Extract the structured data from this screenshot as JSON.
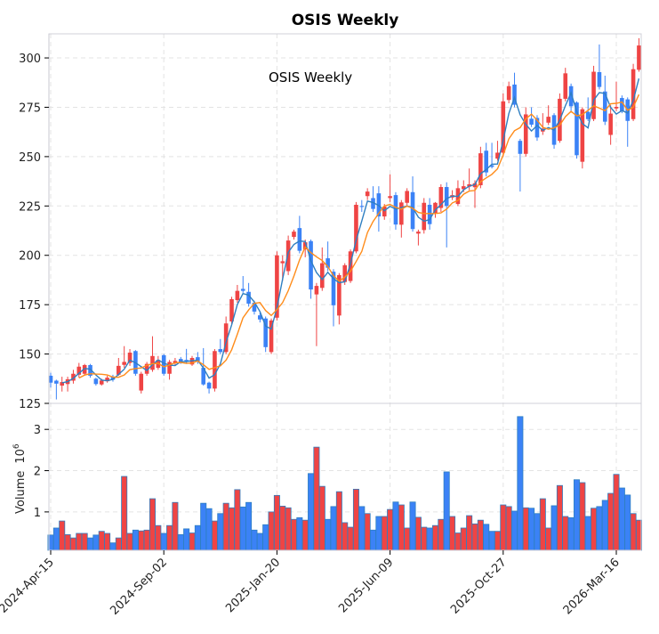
{
  "chart_data": {
    "type": "candlestick",
    "title": "OSIS  Weekly",
    "annotation": "OSIS  Weekly",
    "ylabel_volume": "Volume",
    "ylabel_volume_exponent": "10",
    "ylabel_volume_power": "6",
    "price_ylim": [
      125,
      312.2
    ],
    "price_yticks": [
      125,
      150,
      175,
      200,
      225,
      250,
      275,
      300
    ],
    "volume_ylim": [
      0.07,
      3.63
    ],
    "volume_yticks": [
      1,
      2,
      3
    ],
    "grid": true,
    "xtick_labels": [
      {
        "index": 0,
        "label": "2024-Apr-15"
      },
      {
        "index": 20,
        "label": "2024-Sep-02"
      },
      {
        "index": 40,
        "label": "2025-Jan-20"
      },
      {
        "index": 60,
        "label": "2025-Jun-09"
      },
      {
        "index": 80,
        "label": "2025-Oct-27"
      },
      {
        "index": 100,
        "label": "2026-Mar-16"
      }
    ],
    "moving_averages": [
      {
        "window": 3,
        "color": "#2f7fc1"
      },
      {
        "window": 6,
        "color": "#ff8c1a"
      }
    ],
    "colors": {
      "up": "#ef4444",
      "down": "#3b82f6",
      "volume_edge": "#2f7fc1"
    },
    "open": [
      139,
      136.5,
      134,
      134.8,
      136.5,
      139.5,
      140,
      144.4,
      137.5,
      134.6,
      136.2,
      138.5,
      139.5,
      144.5,
      145.5,
      151.5,
      131.5,
      140,
      142,
      143,
      149.4,
      140,
      145.5,
      147.5,
      147,
      144.7,
      148.4,
      143,
      135.5,
      132.5,
      152.5,
      151,
      166.5,
      177.3,
      183,
      181.5,
      176,
      169.6,
      168,
      151,
      168.4,
      196,
      192,
      209.3,
      213.8,
      203,
      207.2,
      180.2,
      183.5,
      198.5,
      191.7,
      169.5,
      186.5,
      187,
      202,
      225,
      230,
      229,
      231.4,
      219.7,
      229,
      230.5,
      215.5,
      226.6,
      232,
      211,
      212.8,
      225.6,
      221.5,
      224,
      234.6,
      229.3,
      226,
      233.5,
      234.8,
      234.5,
      235.5,
      253,
      245.6,
      249,
      252,
      278.7,
      286.5,
      258,
      251.4,
      269.2,
      269.6,
      262.7,
      267.2,
      271,
      258,
      279.3,
      285.7,
      277.4,
      247.4,
      272.7,
      269,
      292.8,
      283,
      261,
      274.4,
      279.7,
      279,
      269,
      294
    ],
    "high": [
      140.5,
      137,
      138.5,
      138.5,
      142,
      145.5,
      145,
      145,
      138,
      137.5,
      139,
      139.5,
      148,
      154,
      152.5,
      152,
      141,
      146,
      159,
      149,
      150,
      147,
      148,
      148.5,
      152.6,
      149,
      151,
      153,
      136,
      152.5,
      157.6,
      169,
      179,
      185,
      189.5,
      186,
      177,
      171,
      169,
      168,
      202,
      200,
      210,
      213,
      220,
      208,
      208,
      186,
      204,
      207,
      193,
      191,
      196,
      203,
      227,
      228,
      234,
      235,
      235,
      226,
      241,
      232,
      228,
      234,
      240,
      213,
      229,
      229,
      227,
      236,
      237,
      233,
      238,
      238,
      244,
      238,
      255,
      257,
      257,
      258,
      282,
      288,
      292.5,
      259,
      275,
      275,
      271,
      272,
      276,
      272,
      282,
      295,
      287,
      278,
      275,
      280,
      296,
      306.8,
      291,
      276,
      288,
      281,
      280,
      297,
      310
    ],
    "low": [
      133,
      127,
      131,
      131,
      135,
      138,
      139,
      138,
      134,
      134,
      135.5,
      136,
      139,
      143,
      144,
      139,
      130,
      139,
      141,
      142,
      139,
      137,
      144,
      145,
      145,
      144,
      145,
      134,
      130,
      131,
      150,
      150,
      165,
      176,
      181,
      174,
      170,
      166,
      151,
      150,
      167,
      187,
      190,
      208,
      201,
      199,
      178,
      154,
      182,
      192,
      164,
      165,
      185,
      186,
      201,
      222,
      228,
      222,
      212,
      218,
      227,
      213,
      209,
      225,
      212,
      205,
      211,
      213,
      219,
      222,
      204,
      228,
      225,
      232,
      233,
      224,
      234,
      240,
      244,
      248,
      250,
      277,
      275,
      232.3,
      250,
      265,
      258,
      261,
      266,
      254,
      257,
      278,
      273,
      249,
      244,
      268,
      268,
      284,
      266,
      256,
      273,
      272,
      255,
      268,
      293
    ],
    "close": [
      135.5,
      135,
      135.8,
      137.2,
      140,
      143.6,
      144.4,
      139,
      134.8,
      136.6,
      138,
      137,
      144,
      146,
      150.7,
      140,
      140,
      145,
      149,
      147,
      140,
      146,
      146.5,
      146,
      146,
      148,
      146.3,
      134.6,
      132.5,
      151.5,
      151,
      165.5,
      177.8,
      182,
      182,
      175.5,
      171.5,
      167.5,
      153.5,
      167,
      200,
      197,
      207.5,
      212,
      202.3,
      206.6,
      182.7,
      184.5,
      196,
      193.7,
      174.7,
      190,
      195,
      202,
      225.6,
      224.5,
      232.3,
      223.5,
      219.7,
      224.7,
      230,
      215.6,
      226.8,
      232.6,
      213.3,
      212,
      226.6,
      215.8,
      226.6,
      234.6,
      225,
      230.5,
      234,
      235,
      236,
      236.5,
      251.7,
      242,
      244.8,
      252,
      278,
      285.7,
      276.3,
      251.4,
      271.4,
      266.2,
      259.7,
      264.2,
      270.2,
      256,
      279.3,
      292.2,
      275.5,
      250.7,
      274,
      269,
      293,
      285.3,
      267.7,
      271.8,
      275.2,
      273,
      268.1,
      294.3,
      306.3
    ],
    "volume": [
      0.44,
      0.61,
      0.78,
      0.45,
      0.37,
      0.48,
      0.48,
      0.37,
      0.44,
      0.53,
      0.48,
      0.25,
      0.37,
      1.86,
      0.48,
      0.56,
      0.54,
      0.56,
      1.32,
      0.67,
      0.48,
      0.67,
      1.23,
      0.45,
      0.59,
      0.49,
      0.67,
      1.21,
      1.08,
      0.78,
      0.96,
      1.21,
      1.1,
      1.54,
      1.12,
      1.23,
      0.56,
      0.48,
      0.69,
      1.0,
      1.4,
      1.14,
      1.1,
      0.82,
      0.86,
      0.8,
      1.93,
      2.57,
      1.62,
      0.82,
      1.13,
      1.49,
      0.74,
      0.63,
      1.55,
      1.13,
      0.96,
      0.56,
      0.89,
      0.89,
      1.06,
      1.24,
      1.17,
      0.61,
      1.24,
      0.87,
      0.63,
      0.61,
      0.67,
      0.82,
      1.97,
      0.89,
      0.49,
      0.61,
      0.91,
      0.71,
      0.8,
      0.7,
      0.53,
      0.53,
      1.17,
      1.13,
      1.02,
      3.31,
      1.1,
      1.09,
      0.96,
      1.32,
      0.61,
      1.15,
      1.64,
      0.89,
      0.86,
      1.78,
      1.71,
      0.89,
      1.09,
      1.13,
      1.28,
      1.45,
      1.91,
      1.58,
      1.41,
      0.96,
      0.8
    ]
  }
}
